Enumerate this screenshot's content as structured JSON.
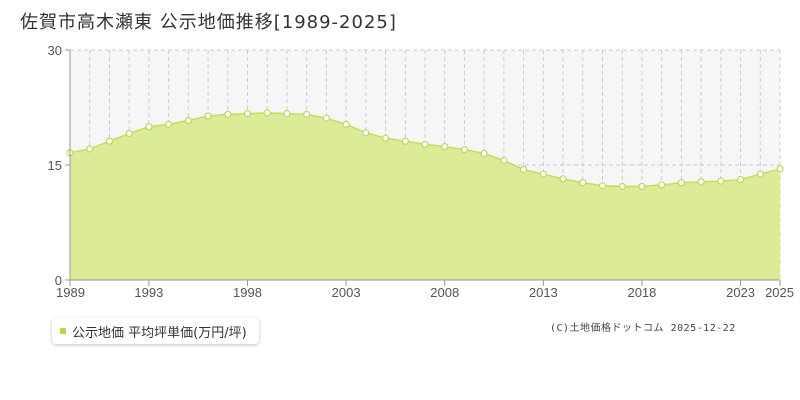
{
  "title": "佐賀市高木瀬東 公示地価推移[1989-2025]",
  "legend": {
    "label": "公示地価 平均坪単価(万円/坪)"
  },
  "credit": "(C)土地価格ドットコム 2025-12-22",
  "colors": {
    "fill": "#dbeb96",
    "line": "#c2de5e",
    "point_fill": "#ffffff",
    "point_stroke": "#b9d860",
    "grid_dash": "#cccccc",
    "axis": "#999999",
    "plot_bg": "#f6f6f6"
  },
  "chart_data": {
    "type": "area",
    "x": [
      1989,
      1990,
      1991,
      1992,
      1993,
      1994,
      1995,
      1996,
      1997,
      1998,
      1999,
      2000,
      2001,
      2002,
      2003,
      2004,
      2005,
      2006,
      2007,
      2008,
      2009,
      2010,
      2011,
      2012,
      2013,
      2014,
      2015,
      2016,
      2017,
      2018,
      2019,
      2020,
      2021,
      2022,
      2023,
      2024,
      2025
    ],
    "series": [
      {
        "values": [
          16.6,
          17.1,
          18.1,
          19.1,
          20.0,
          20.3,
          20.8,
          21.4,
          21.6,
          21.7,
          21.8,
          21.7,
          21.6,
          21.1,
          20.3,
          19.2,
          18.5,
          18.1,
          17.7,
          17.4,
          17.0,
          16.5,
          15.6,
          14.4,
          13.8,
          13.2,
          12.7,
          12.3,
          12.2,
          12.2,
          12.4,
          12.7,
          12.8,
          12.9,
          13.1,
          13.8,
          14.5
        ]
      }
    ],
    "ylim": [
      0,
      30
    ],
    "yticks": [
      0,
      15,
      30
    ],
    "xticks": [
      1989,
      1993,
      1998,
      2003,
      2008,
      2013,
      2018,
      2023,
      2025
    ],
    "grid": true
  }
}
